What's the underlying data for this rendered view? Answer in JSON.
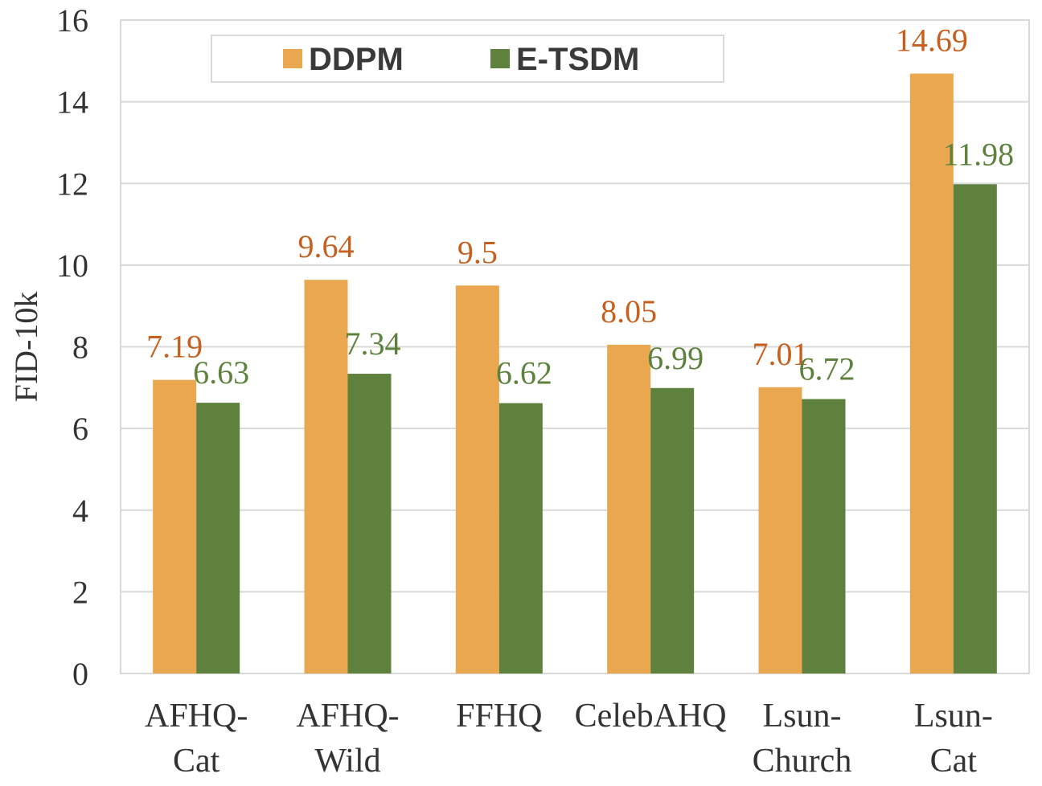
{
  "colors": {
    "series_ddpm": "#E9A750",
    "series_etsdm": "#5E823E",
    "label_ddpm": "#C5601F",
    "label_etsdm": "#5E823E",
    "grid": "#D9D9D9"
  },
  "chart_data": {
    "type": "bar",
    "title": "",
    "xlabel": "",
    "ylabel": "FID-10k",
    "ylim": [
      0,
      16
    ],
    "yticks": [
      "0",
      "2",
      "4",
      "6",
      "8",
      "10",
      "12",
      "14",
      "16"
    ],
    "grid": true,
    "legend_position": "top-center",
    "categories": [
      [
        "AFHQ-",
        "Cat"
      ],
      [
        "AFHQ-",
        "Wild"
      ],
      [
        "FFHQ"
      ],
      [
        "CelebAHQ"
      ],
      [
        "Lsun-",
        "Church"
      ],
      [
        "Lsun-",
        "Cat"
      ]
    ],
    "series": [
      {
        "name": "DDPM",
        "values": [
          7.19,
          9.64,
          9.5,
          8.05,
          7.01,
          14.69
        ],
        "labels": [
          "7.19",
          "9.64",
          "9.5",
          "8.05",
          "7.01",
          "14.69"
        ]
      },
      {
        "name": "E-TSDM",
        "values": [
          6.63,
          7.34,
          6.62,
          6.99,
          6.72,
          11.98
        ],
        "labels": [
          "6.63",
          "7.34",
          "6.62",
          "6.99",
          "6.72",
          "11.98"
        ]
      }
    ]
  }
}
